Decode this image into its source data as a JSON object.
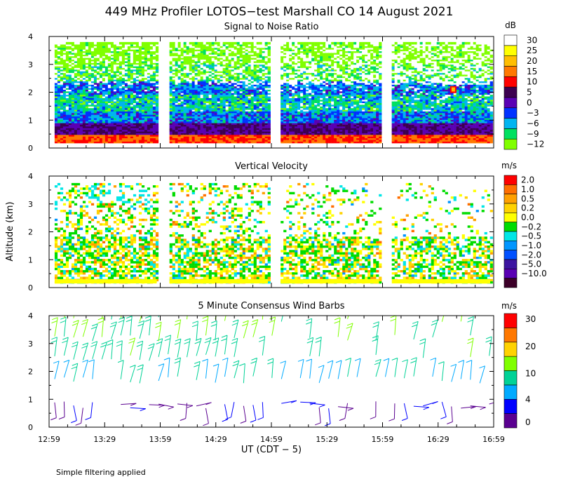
{
  "title": "449 MHz Profiler LOTOS−test Marshall CO 14 August 2021",
  "footnote": "Simple filtering applied",
  "colors": {
    "snr": [
      "#80ff00",
      "#00e060",
      "#00b4f0",
      "#0032ff",
      "#5a00b4",
      "#3c0050",
      "#ff0000",
      "#ff7800",
      "#ffbe00",
      "#ffff00",
      "#ffffff"
    ],
    "vv": [
      "#3c0028",
      "#5a00b4",
      "#3c14a0",
      "#0050ff",
      "#0096ff",
      "#00e6e6",
      "#00dc00",
      "#ffff00",
      "#ffd200",
      "#ffa000",
      "#ff6e00",
      "#ff0000"
    ],
    "barb": [
      "#5a0090",
      "#0000ff",
      "#00aaff",
      "#00d296",
      "#80ff00",
      "#ffd200",
      "#ff7800",
      "#ff0000"
    ]
  },
  "chart_data": [
    {
      "type": "heatmap",
      "title": "Signal to Noise Ratio",
      "unit": "dB",
      "ylabel": "Altitude (km)",
      "xlabel": "UT  (CDT − 5)",
      "ylim": [
        0,
        4
      ],
      "yticks": [
        "0",
        "1",
        "2",
        "3",
        "4"
      ],
      "xlim_hours": [
        12.9833,
        16.9833
      ],
      "xticks": [
        "12:59",
        "13:29",
        "13:59",
        "14:29",
        "14:59",
        "15:29",
        "15:59",
        "16:29",
        "16:59"
      ],
      "colorbar_labels": [
        "−12",
        "−9",
        "−6",
        "−3",
        "0",
        "5",
        "10",
        "15",
        "20",
        "25",
        "30"
      ],
      "data_segments_ut": [
        [
          "13:02",
          "13:59"
        ],
        [
          "14:04",
          "14:59"
        ],
        [
          "15:04",
          "15:59"
        ],
        [
          "16:04",
          "16:59"
        ]
      ],
      "layers": [
        {
          "alt_km": [
            0.2,
            0.5
          ],
          "snr_db": 15
        },
        {
          "alt_km": [
            0.5,
            0.9
          ],
          "snr_db": 5
        },
        {
          "alt_km": [
            0.9,
            1.3
          ],
          "snr_db": -3
        },
        {
          "alt_km": [
            1.3,
            1.9
          ],
          "snr_db": -6
        },
        {
          "alt_km": [
            1.9,
            2.4
          ],
          "snr_db": -3
        },
        {
          "alt_km": [
            2.4,
            3.0
          ],
          "snr_db": -9
        },
        {
          "alt_km": [
            3.0,
            3.8
          ],
          "snr_db": -12
        }
      ]
    },
    {
      "type": "heatmap",
      "title": "Vertical Velocity",
      "unit": "m/s",
      "ylabel": "Altitude (km)",
      "ylim": [
        0,
        4
      ],
      "yticks": [
        "0",
        "1",
        "2",
        "3",
        "4"
      ],
      "colorbar_labels": [
        "2.0",
        "1.0",
        "0.5",
        "0.2",
        "0.0",
        "−0.2",
        "−0.5",
        "−1.0",
        "−2.0",
        "−5.0",
        "−10.0"
      ],
      "typical_range_ms": [
        -1.0,
        1.0
      ]
    },
    {
      "type": "scatter",
      "title": "5 Minute Consensus Wind Barbs",
      "unit": "m/s",
      "ylabel": "Altitude (km)",
      "ylim": [
        0,
        4
      ],
      "yticks": [
        "0",
        "1",
        "2",
        "3",
        "4"
      ],
      "colorbar_labels": [
        "0",
        "4",
        "10",
        "20",
        "30"
      ],
      "speed_by_altitude": [
        {
          "alt_km": 0.8,
          "speed_ms": 2
        },
        {
          "alt_km": 1.7,
          "speed_ms": 7
        },
        {
          "alt_km": 2.5,
          "speed_ms": 9
        },
        {
          "alt_km": 3.4,
          "speed_ms": 10
        },
        {
          "alt_km": 4.0,
          "speed_ms": 11
        }
      ]
    }
  ]
}
